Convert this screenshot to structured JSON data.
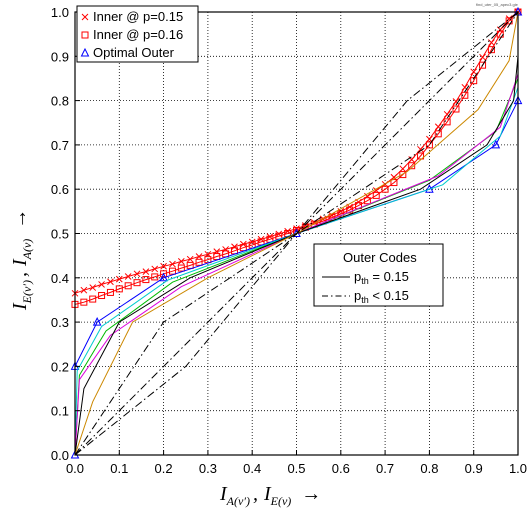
{
  "chart_data": {
    "type": "line",
    "corner_note": "find_uter_05_apec3.gie",
    "xlabel": {
      "i1": "I",
      "s1": "A(v′)",
      "sep": ",",
      "i2": "I",
      "s2": "E(v)",
      "arrow": "→"
    },
    "ylabel": {
      "i1": "I",
      "s1": "E(v′)",
      "sep": ",",
      "i2": "I",
      "s2": "A(v)",
      "arrow": "→"
    },
    "xlim": [
      0,
      1
    ],
    "ylim": [
      0,
      1
    ],
    "grid": true,
    "xticks": [
      0,
      0.1,
      0.2,
      0.3,
      0.4,
      0.5,
      0.6,
      0.7,
      0.8,
      0.9,
      1
    ],
    "xtick_labels": [
      "0.0",
      "0.1",
      "0.2",
      "0.3",
      "0.4",
      "0.5",
      "0.6",
      "0.7",
      "0.8",
      "0.9",
      "1.0"
    ],
    "yticks": [
      0,
      0.1,
      0.2,
      0.3,
      0.4,
      0.5,
      0.6,
      0.7,
      0.8,
      0.9,
      1
    ],
    "ytick_labels": [
      "0.0",
      "0.1",
      "0.2",
      "0.3",
      "0.4",
      "0.5",
      "0.6",
      "0.7",
      "0.8",
      "0.9",
      "1.0"
    ],
    "legend": {
      "placement": "top-left",
      "entries": [
        {
          "label": "Inner @ p=0.15",
          "color": "#ff0000",
          "marker": "x"
        },
        {
          "label": "Inner @ p=0.16",
          "color": "#ff0000",
          "marker": "square"
        },
        {
          "label": "Optimal Outer",
          "color": "#0000ff",
          "marker": "triangle"
        }
      ]
    },
    "legend2": {
      "placement": "center-right",
      "title": "Outer Codes",
      "entries": [
        {
          "label_main": "p",
          "label_sub": "th",
          "label_rest": " = 0.15",
          "style": "solid"
        },
        {
          "label_main": "p",
          "label_sub": "th",
          "label_rest": " < 0.15",
          "style": "dashdot"
        }
      ]
    },
    "series": [
      {
        "color": "#ff0000",
        "style": "solid",
        "marker": "x",
        "x": [
          0,
          0.02,
          0.04,
          0.06,
          0.08,
          0.1,
          0.12,
          0.14,
          0.16,
          0.18,
          0.2,
          0.22,
          0.24,
          0.26,
          0.28,
          0.3,
          0.32,
          0.34,
          0.36,
          0.38,
          0.4,
          0.42,
          0.44,
          0.46,
          0.48,
          0.5,
          0.52,
          0.54,
          0.56,
          0.58,
          0.6,
          0.62,
          0.64,
          0.66,
          0.68,
          0.7,
          0.72,
          0.74,
          0.76,
          0.78,
          0.8,
          0.82,
          0.84,
          0.86,
          0.88,
          0.9,
          0.92,
          0.94,
          0.96,
          0.98,
          1.0
        ],
        "y": [
          0.365,
          0.372,
          0.378,
          0.385,
          0.391,
          0.397,
          0.403,
          0.409,
          0.414,
          0.42,
          0.426,
          0.431,
          0.437,
          0.442,
          0.448,
          0.453,
          0.459,
          0.464,
          0.47,
          0.476,
          0.481,
          0.487,
          0.493,
          0.499,
          0.505,
          0.511,
          0.518,
          0.525,
          0.533,
          0.541,
          0.55,
          0.56,
          0.571,
          0.584,
          0.597,
          0.611,
          0.627,
          0.646,
          0.667,
          0.69,
          0.713,
          0.741,
          0.769,
          0.798,
          0.83,
          0.865,
          0.898,
          0.931,
          0.96,
          0.985,
          1.0
        ]
      },
      {
        "color": "#ff0000",
        "style": "solid",
        "marker": "square",
        "x": [
          0,
          0.02,
          0.04,
          0.06,
          0.08,
          0.1,
          0.12,
          0.14,
          0.16,
          0.18,
          0.2,
          0.22,
          0.24,
          0.26,
          0.28,
          0.3,
          0.32,
          0.34,
          0.36,
          0.38,
          0.4,
          0.42,
          0.44,
          0.46,
          0.48,
          0.5,
          0.52,
          0.54,
          0.56,
          0.58,
          0.6,
          0.62,
          0.64,
          0.66,
          0.68,
          0.7,
          0.72,
          0.74,
          0.76,
          0.78,
          0.8,
          0.82,
          0.84,
          0.86,
          0.88,
          0.9,
          0.92,
          0.94,
          0.96,
          0.98,
          1.0
        ],
        "y": [
          0.34,
          0.345,
          0.352,
          0.36,
          0.367,
          0.375,
          0.382,
          0.389,
          0.396,
          0.402,
          0.409,
          0.415,
          0.422,
          0.428,
          0.435,
          0.441,
          0.448,
          0.454,
          0.461,
          0.468,
          0.474,
          0.481,
          0.487,
          0.494,
          0.5,
          0.507,
          0.514,
          0.521,
          0.528,
          0.536,
          0.544,
          0.553,
          0.563,
          0.574,
          0.586,
          0.6,
          0.615,
          0.633,
          0.653,
          0.675,
          0.7,
          0.725,
          0.752,
          0.781,
          0.812,
          0.845,
          0.88,
          0.915,
          0.95,
          0.98,
          1.0
        ]
      },
      {
        "color": "#0000ff",
        "style": "solid",
        "marker": "triangle",
        "x": [
          0,
          0,
          0.05,
          0.2,
          0.5,
          0.8,
          0.95,
          1,
          1
        ],
        "y": [
          0,
          0.2,
          0.3,
          0.4,
          0.5,
          0.6,
          0.7,
          0.8,
          1.0
        ]
      },
      {
        "color": "#00bb00",
        "style": "solid",
        "marker": "none",
        "x": [
          0,
          0.01,
          0.07,
          0.22,
          0.5,
          0.8,
          0.95,
          1,
          1
        ],
        "y": [
          0,
          0.18,
          0.28,
          0.39,
          0.5,
          0.62,
          0.73,
          0.85,
          1.0
        ]
      },
      {
        "color": "#00cccc",
        "style": "solid",
        "marker": "none",
        "x": [
          0,
          0.005,
          0.06,
          0.21,
          0.5,
          0.83,
          0.96,
          1,
          1
        ],
        "y": [
          0,
          0.19,
          0.29,
          0.395,
          0.5,
          0.61,
          0.72,
          0.83,
          1.0
        ]
      },
      {
        "color": "#dd00dd",
        "style": "solid",
        "marker": "none",
        "x": [
          0,
          0.01,
          0.08,
          0.24,
          0.5,
          0.82,
          0.96,
          1,
          1
        ],
        "y": [
          0,
          0.17,
          0.27,
          0.38,
          0.5,
          0.63,
          0.74,
          0.86,
          1.0
        ]
      },
      {
        "color": "#000000",
        "style": "solid",
        "marker": "none",
        "x": [
          0,
          0.02,
          0.1,
          0.26,
          0.5,
          0.78,
          0.93,
          0.99,
          1
        ],
        "y": [
          0,
          0.15,
          0.3,
          0.4,
          0.5,
          0.6,
          0.7,
          0.8,
          0.9
        ]
      },
      {
        "color": "#cc8800",
        "style": "solid",
        "marker": "none",
        "x": [
          0,
          0.04,
          0.13,
          0.3,
          0.5,
          0.75,
          0.91,
          0.98,
          1
        ],
        "y": [
          0,
          0.12,
          0.3,
          0.4,
          0.5,
          0.64,
          0.78,
          0.89,
          1.0
        ]
      },
      {
        "color": "#000000",
        "style": "dashdot",
        "marker": "none",
        "x": [
          0,
          1
        ],
        "y": [
          0,
          1
        ]
      },
      {
        "color": "#000000",
        "style": "dashdot",
        "marker": "none",
        "x": [
          0,
          0.25,
          0.5,
          0.75,
          1
        ],
        "y": [
          0,
          0.2,
          0.5,
          0.8,
          1
        ]
      },
      {
        "color": "#000000",
        "style": "dashdot",
        "marker": "none",
        "x": [
          0,
          0.2,
          0.5,
          0.8,
          1
        ],
        "y": [
          0,
          0.3,
          0.5,
          0.7,
          1
        ]
      }
    ]
  }
}
